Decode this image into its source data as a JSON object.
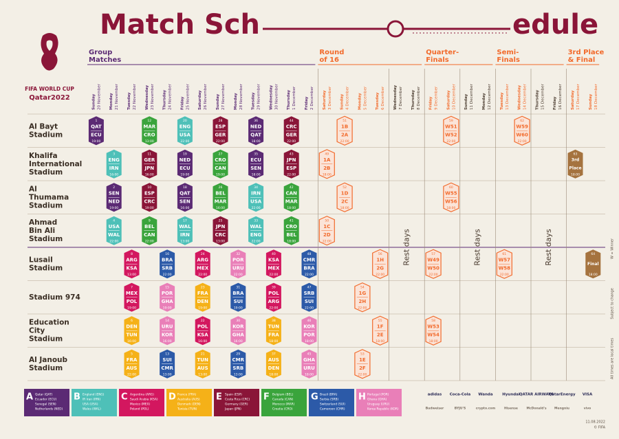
{
  "header": {
    "title_parts": [
      "Match Sch",
      "edule"
    ],
    "logo_lines": [
      "FIFA WORLD CUP",
      "Qatar2022"
    ]
  },
  "phases": [
    {
      "lines": [
        "Group",
        "Matches"
      ],
      "first_day": 0,
      "color": "#5b2a74"
    },
    {
      "lines": [
        "Round",
        "of 16"
      ],
      "first_day": 13,
      "color": "#f26a2b"
    },
    {
      "lines": [
        "Quarter-",
        "Finals"
      ],
      "first_day": 19,
      "color": "#f26a2b"
    },
    {
      "lines": [
        "Semi-",
        "Finals"
      ],
      "first_day": 23,
      "color": "#f26a2b"
    },
    {
      "lines": [
        "3rd Place",
        "& Final"
      ],
      "first_day": 27,
      "color": "#f26a2b"
    }
  ],
  "days": [
    {
      "weekday": "Sunday",
      "date": "20 November"
    },
    {
      "weekday": "Monday",
      "date": "21 November"
    },
    {
      "weekday": "Tuesday",
      "date": "22 November"
    },
    {
      "weekday": "Wednesday",
      "date": "23 November"
    },
    {
      "weekday": "Thursday",
      "date": "24 November"
    },
    {
      "weekday": "Friday",
      "date": "25 November"
    },
    {
      "weekday": "Saturday",
      "date": "26 November"
    },
    {
      "weekday": "Sunday",
      "date": "27 November"
    },
    {
      "weekday": "Monday",
      "date": "28 November"
    },
    {
      "weekday": "Tuesday",
      "date": "29 November"
    },
    {
      "weekday": "Wednesday",
      "date": "30 November"
    },
    {
      "weekday": "Thursday",
      "date": "1 December"
    },
    {
      "weekday": "Friday",
      "date": "2 December"
    },
    {
      "weekday": "Saturday",
      "date": "3 December"
    },
    {
      "weekday": "Sunday",
      "date": "4 December"
    },
    {
      "weekday": "Monday",
      "date": "5 December"
    },
    {
      "weekday": "Tuesday",
      "date": "6 December"
    },
    {
      "weekday": "Wednesday",
      "date": "7 December"
    },
    {
      "weekday": "Thursday",
      "date": "8 December"
    },
    {
      "weekday": "Friday",
      "date": "9 December"
    },
    {
      "weekday": "Saturday",
      "date": "10 December"
    },
    {
      "weekday": "Sunday",
      "date": "11 December"
    },
    {
      "weekday": "Monday",
      "date": "12 December"
    },
    {
      "weekday": "Tuesday",
      "date": "13 December"
    },
    {
      "weekday": "Wednesday",
      "date": "14 December"
    },
    {
      "weekday": "Thursday",
      "date": "15 December"
    },
    {
      "weekday": "Friday",
      "date": "16 December"
    },
    {
      "weekday": "Saturday",
      "date": "17 December"
    },
    {
      "weekday": "Sunday",
      "date": "18 December"
    }
  ],
  "rest_days": [
    {
      "label": "Rest days",
      "days": [
        17,
        18
      ]
    },
    {
      "label": "Rest days",
      "days": [
        21,
        22
      ]
    },
    {
      "label": "Rest days",
      "days": [
        25,
        26
      ]
    }
  ],
  "stadiums": [
    {
      "lines": [
        "Al Bayt",
        "Stadium"
      ],
      "matches": [
        {
          "n": "1",
          "t": [
            "QAT",
            "ECU"
          ],
          "time": "19:00",
          "day": 0,
          "group": "A"
        },
        {
          "n": "12",
          "t": [
            "MAR",
            "CRO"
          ],
          "time": "13:00",
          "day": 3,
          "group": "F"
        },
        {
          "n": "20",
          "t": [
            "ENG",
            "USA"
          ],
          "time": "22:00",
          "day": 5,
          "group": "B"
        },
        {
          "n": "28",
          "t": [
            "ESP",
            "GER"
          ],
          "time": "22:00",
          "day": 7,
          "group": "E"
        },
        {
          "n": "36",
          "t": [
            "NED",
            "QAT"
          ],
          "time": "18:00",
          "day": 9,
          "group": "A"
        },
        {
          "n": "44",
          "t": [
            "CRC",
            "GER"
          ],
          "time": "22:00",
          "day": 11,
          "group": "E"
        },
        {
          "n": "51",
          "t": [
            "1B",
            "2A"
          ],
          "time": "22:00",
          "day": 14,
          "color": "#f26a2b"
        },
        {
          "n": "59",
          "t": [
            "W51",
            "W52"
          ],
          "time": "22:00",
          "day": 20,
          "color": "#f26a2b"
        },
        {
          "n": "62",
          "t": [
            "W59",
            "W60"
          ],
          "time": "22:00",
          "day": 24,
          "color": "#f26a2b"
        }
      ]
    },
    {
      "lines": [
        "Khalifa",
        "International",
        "Stadium"
      ],
      "matches": [
        {
          "n": "3",
          "t": [
            "ENG",
            "IRN"
          ],
          "time": "16:00",
          "day": 1,
          "group": "B"
        },
        {
          "n": "11",
          "t": [
            "GER",
            "JPN"
          ],
          "time": "16:00",
          "day": 3,
          "group": "E"
        },
        {
          "n": "19",
          "t": [
            "NED",
            "ECU"
          ],
          "time": "19:00",
          "day": 5,
          "group": "A"
        },
        {
          "n": "27",
          "t": [
            "CRO",
            "CAN"
          ],
          "time": "19:00",
          "day": 7,
          "group": "F"
        },
        {
          "n": "35",
          "t": [
            "ECU",
            "SEN"
          ],
          "time": "18:00",
          "day": 9,
          "group": "A"
        },
        {
          "n": "43",
          "t": [
            "JPN",
            "ESP"
          ],
          "time": "22:00",
          "day": 11,
          "group": "E"
        },
        {
          "n": "49",
          "t": [
            "1A",
            "2B"
          ],
          "time": "18:00",
          "day": 13,
          "color": "#f26a2b"
        },
        {
          "n": "63",
          "t": [
            "3rd",
            "Place"
          ],
          "time": "18:00",
          "day": 27,
          "color": "#a5733f",
          "style": "final"
        }
      ]
    },
    {
      "lines": [
        "Al",
        "Thumama",
        "Stadium"
      ],
      "matches": [
        {
          "n": "2",
          "t": [
            "SEN",
            "NED"
          ],
          "time": "19:00",
          "day": 1,
          "group": "A"
        },
        {
          "n": "10",
          "t": [
            "ESP",
            "CRC"
          ],
          "time": "19:00",
          "day": 3,
          "group": "E"
        },
        {
          "n": "18",
          "t": [
            "QAT",
            "SEN"
          ],
          "time": "16:00",
          "day": 5,
          "group": "A"
        },
        {
          "n": "26",
          "t": [
            "BEL",
            "MAR"
          ],
          "time": "16:00",
          "day": 7,
          "group": "F"
        },
        {
          "n": "34",
          "t": [
            "IRN",
            "USA"
          ],
          "time": "22:00",
          "day": 9,
          "group": "B"
        },
        {
          "n": "42",
          "t": [
            "CAN",
            "MAR"
          ],
          "time": "18:00",
          "day": 11,
          "group": "F"
        },
        {
          "n": "52",
          "t": [
            "1D",
            "2C"
          ],
          "time": "18:00",
          "day": 14,
          "color": "#f26a2b"
        },
        {
          "n": "60",
          "t": [
            "W55",
            "W56"
          ],
          "time": "18:00",
          "day": 20,
          "color": "#f26a2b"
        }
      ]
    },
    {
      "lines": [
        "Ahmad",
        "Bin Ali",
        "Stadium"
      ],
      "matches": [
        {
          "n": "4",
          "t": [
            "USA",
            "WAL"
          ],
          "time": "22:00",
          "day": 1,
          "group": "B"
        },
        {
          "n": "9",
          "t": [
            "BEL",
            "CAN"
          ],
          "time": "22:00",
          "day": 3,
          "group": "F"
        },
        {
          "n": "17",
          "t": [
            "WAL",
            "IRN"
          ],
          "time": "13:00",
          "day": 5,
          "group": "B"
        },
        {
          "n": "25",
          "t": [
            "JPN",
            "CRC"
          ],
          "time": "13:00",
          "day": 7,
          "group": "E"
        },
        {
          "n": "33",
          "t": [
            "WAL",
            "ENG"
          ],
          "time": "22:00",
          "day": 9,
          "group": "B"
        },
        {
          "n": "41",
          "t": [
            "CRO",
            "BEL"
          ],
          "time": "18:00",
          "day": 11,
          "group": "F"
        },
        {
          "n": "50",
          "t": [
            "1C",
            "2D"
          ],
          "time": "22:00",
          "day": 13,
          "color": "#f26a2b"
        }
      ]
    },
    {
      "lines": [
        "Lusail",
        "Stadium"
      ],
      "matches": [
        {
          "n": "8",
          "t": [
            "ARG",
            "KSA"
          ],
          "time": "13:00",
          "day": 2,
          "group": "C"
        },
        {
          "n": "16",
          "t": [
            "BRA",
            "SRB"
          ],
          "time": "22:00",
          "day": 4,
          "group": "G"
        },
        {
          "n": "24",
          "t": [
            "ARG",
            "MEX"
          ],
          "time": "22:00",
          "day": 6,
          "group": "C"
        },
        {
          "n": "32",
          "t": [
            "POR",
            "URU"
          ],
          "time": "22:00",
          "day": 8,
          "group": "H"
        },
        {
          "n": "40",
          "t": [
            "KSA",
            "MEX"
          ],
          "time": "22:00",
          "day": 10,
          "group": "C"
        },
        {
          "n": "48",
          "t": [
            "CMR",
            "BRA"
          ],
          "time": "22:00",
          "day": 12,
          "group": "G"
        },
        {
          "n": "56",
          "t": [
            "1H",
            "2G"
          ],
          "time": "22:00",
          "day": 16,
          "color": "#f26a2b"
        },
        {
          "n": "57",
          "t": [
            "W49",
            "W50"
          ],
          "time": "22:00",
          "day": 19,
          "color": "#f26a2b"
        },
        {
          "n": "61",
          "t": [
            "W57",
            "W58"
          ],
          "time": "22:00",
          "day": 23,
          "color": "#f26a2b"
        },
        {
          "n": "64",
          "t": [
            "Final"
          ],
          "time": "18:00",
          "day": 28,
          "color": "#a5733f",
          "style": "final"
        }
      ]
    },
    {
      "lines": [
        "Stadium 974"
      ],
      "matches": [
        {
          "n": "7",
          "t": [
            "MEX",
            "POL"
          ],
          "time": "19:00",
          "day": 2,
          "group": "C"
        },
        {
          "n": "15",
          "t": [
            "POR",
            "GHA"
          ],
          "time": "19:00",
          "day": 4,
          "group": "H"
        },
        {
          "n": "23",
          "t": [
            "FRA",
            "DEN"
          ],
          "time": "19:00",
          "day": 6,
          "group": "D"
        },
        {
          "n": "31",
          "t": [
            "BRA",
            "SUI"
          ],
          "time": "19:00",
          "day": 8,
          "group": "G"
        },
        {
          "n": "39",
          "t": [
            "POL",
            "ARG"
          ],
          "time": "22:00",
          "day": 10,
          "group": "C"
        },
        {
          "n": "47",
          "t": [
            "SRB",
            "SUI"
          ],
          "time": "22:00",
          "day": 12,
          "group": "G"
        },
        {
          "n": "54",
          "t": [
            "1G",
            "2H"
          ],
          "time": "22:00",
          "day": 15,
          "color": "#f26a2b"
        }
      ]
    },
    {
      "lines": [
        "Education",
        "City",
        "Stadium"
      ],
      "matches": [
        {
          "n": "6",
          "t": [
            "DEN",
            "TUN"
          ],
          "time": "16:00",
          "day": 2,
          "group": "D"
        },
        {
          "n": "14",
          "t": [
            "URU",
            "KOR"
          ],
          "time": "16:00",
          "day": 4,
          "group": "H"
        },
        {
          "n": "22",
          "t": [
            "POL",
            "KSA"
          ],
          "time": "16:00",
          "day": 6,
          "group": "C"
        },
        {
          "n": "30",
          "t": [
            "KOR",
            "GHA"
          ],
          "time": "16:00",
          "day": 8,
          "group": "H"
        },
        {
          "n": "38",
          "t": [
            "TUN",
            "FRA"
          ],
          "time": "18:00",
          "day": 10,
          "group": "D"
        },
        {
          "n": "46",
          "t": [
            "KOR",
            "POR"
          ],
          "time": "18:00",
          "day": 12,
          "group": "H"
        },
        {
          "n": "55",
          "t": [
            "1F",
            "2E"
          ],
          "time": "18:00",
          "day": 16,
          "color": "#f26a2b"
        },
        {
          "n": "58",
          "t": [
            "W53",
            "W54"
          ],
          "time": "18:00",
          "day": 19,
          "color": "#f26a2b"
        }
      ]
    },
    {
      "lines": [
        "Al Janoub",
        "Stadium"
      ],
      "matches": [
        {
          "n": "5",
          "t": [
            "FRA",
            "AUS"
          ],
          "time": "22:00",
          "day": 2,
          "group": "D"
        },
        {
          "n": "13",
          "t": [
            "SUI",
            "CMR"
          ],
          "time": "13:00",
          "day": 4,
          "group": "G"
        },
        {
          "n": "21",
          "t": [
            "TUN",
            "AUS"
          ],
          "time": "13:00",
          "day": 6,
          "group": "D"
        },
        {
          "n": "29",
          "t": [
            "CMR",
            "SRB"
          ],
          "time": "13:00",
          "day": 8,
          "group": "G"
        },
        {
          "n": "37",
          "t": [
            "AUS",
            "DEN"
          ],
          "time": "18:00",
          "day": 10,
          "group": "D"
        },
        {
          "n": "45",
          "t": [
            "GHA",
            "URU"
          ],
          "time": "18:00",
          "day": 12,
          "group": "H"
        },
        {
          "n": "53",
          "t": [
            "1E",
            "2F"
          ],
          "time": "22:00",
          "day": 15,
          "color": "#f26a2b"
        }
      ]
    }
  ],
  "groups": [
    {
      "letter": "A",
      "color": "#5b2a74",
      "teams": [
        "Qatar (QAT)",
        "Ecuador (ECU)",
        "Senegal (SEN)",
        "Netherlands (NED)"
      ]
    },
    {
      "letter": "B",
      "color": "#4ec0b8",
      "teams": [
        "England (ENG)",
        "IR Iran (IRN)",
        "USA (USA)",
        "Wales (WAL)"
      ]
    },
    {
      "letter": "C",
      "color": "#d3175f",
      "teams": [
        "Argentina (ARG)",
        "Saudi Arabia (KSA)",
        "Mexico (MEX)",
        "Poland (POL)"
      ]
    },
    {
      "letter": "D",
      "color": "#f5b118",
      "teams": [
        "France (FRA)",
        "Australia (AUS)",
        "Denmark (DEN)",
        "Tunisia (TUN)"
      ]
    },
    {
      "letter": "E",
      "color": "#8a1538",
      "teams": [
        "Spain (ESP)",
        "Costa Rica (CRC)",
        "Germany (GER)",
        "Japan (JPN)"
      ]
    },
    {
      "letter": "F",
      "color": "#3aa43c",
      "teams": [
        "Belgium (BEL)",
        "Canada (CAN)",
        "Morocco (MAR)",
        "Croatia (CRO)"
      ]
    },
    {
      "letter": "G",
      "color": "#2c5aa8",
      "teams": [
        "Brazil (BRA)",
        "Serbia (SRB)",
        "Switzerland (SUI)",
        "Cameroon (CMR)"
      ]
    },
    {
      "letter": "H",
      "color": "#e97fb8",
      "teams": [
        "Portugal (POR)",
        "Ghana (GHA)",
        "Uruguay (URU)",
        "Korea Republic (KOR)"
      ]
    }
  ],
  "sponsors": [
    [
      "adidas",
      "Coca-Cola",
      "Wanda",
      "Hyundai",
      "QATAR AIRWAYS",
      "QatarEnergy",
      "VISA"
    ],
    [
      "Budweiser",
      "BYJU'S",
      "crypto.com",
      "Hisense",
      "McDonald's",
      "Mengniu",
      "vivo"
    ]
  ],
  "side_notes": [
    "W = Winner",
    "Subject to change",
    "All times are local times"
  ],
  "footer": {
    "date": "11.08.2022",
    "copyright": "© FIFA"
  }
}
